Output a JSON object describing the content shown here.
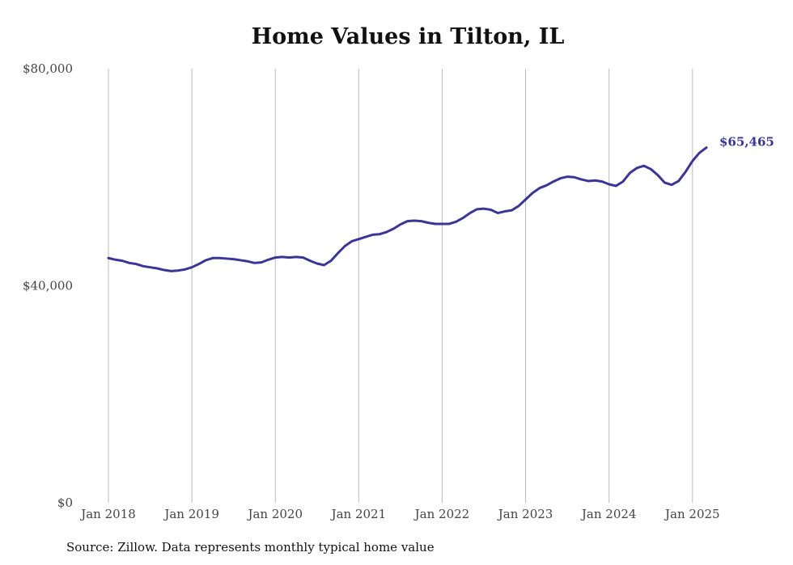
{
  "title": "Home Values in Tilton, IL",
  "source": "Source: Zillow. Data represents monthly typical home value",
  "colors": {
    "line": "#3b3596",
    "grid": "#bbbbbb"
  },
  "chart_data": {
    "type": "line",
    "title": "Home Values in Tilton, IL",
    "xlabel": "",
    "ylabel": "",
    "ylim": [
      0,
      80000
    ],
    "xlim": [
      "2018-01",
      "2025-03"
    ],
    "y_ticks": [
      {
        "value": 0,
        "label": "$0"
      },
      {
        "value": 40000,
        "label": "$40,000"
      },
      {
        "value": 80000,
        "label": "$80,000"
      }
    ],
    "x_ticks": [
      {
        "date": "2018-01",
        "label": "Jan 2018"
      },
      {
        "date": "2019-01",
        "label": "Jan 2019"
      },
      {
        "date": "2020-01",
        "label": "Jan 2020"
      },
      {
        "date": "2021-01",
        "label": "Jan 2021"
      },
      {
        "date": "2022-01",
        "label": "Jan 2022"
      },
      {
        "date": "2023-01",
        "label": "Jan 2023"
      },
      {
        "date": "2024-01",
        "label": "Jan 2024"
      },
      {
        "date": "2025-01",
        "label": "Jan 2025"
      }
    ],
    "grid": "vertical",
    "end_label": "$65,465",
    "series": [
      {
        "points": [
          [
            "2018-01",
            45100
          ],
          [
            "2018-02",
            44800
          ],
          [
            "2018-03",
            44600
          ],
          [
            "2018-04",
            44200
          ],
          [
            "2018-05",
            44000
          ],
          [
            "2018-06",
            43600
          ],
          [
            "2018-07",
            43400
          ],
          [
            "2018-08",
            43200
          ],
          [
            "2018-09",
            42900
          ],
          [
            "2018-10",
            42700
          ],
          [
            "2018-11",
            42800
          ],
          [
            "2018-12",
            43000
          ],
          [
            "2019-01",
            43400
          ],
          [
            "2019-02",
            44000
          ],
          [
            "2019-03",
            44700
          ],
          [
            "2019-04",
            45100
          ],
          [
            "2019-05",
            45100
          ],
          [
            "2019-06",
            45000
          ],
          [
            "2019-07",
            44900
          ],
          [
            "2019-08",
            44700
          ],
          [
            "2019-09",
            44500
          ],
          [
            "2019-10",
            44200
          ],
          [
            "2019-11",
            44300
          ],
          [
            "2019-12",
            44800
          ],
          [
            "2020-01",
            45200
          ],
          [
            "2020-02",
            45300
          ],
          [
            "2020-03",
            45200
          ],
          [
            "2020-04",
            45300
          ],
          [
            "2020-05",
            45200
          ],
          [
            "2020-06",
            44600
          ],
          [
            "2020-07",
            44100
          ],
          [
            "2020-08",
            43800
          ],
          [
            "2020-09",
            44600
          ],
          [
            "2020-10",
            46000
          ],
          [
            "2020-11",
            47300
          ],
          [
            "2020-12",
            48200
          ],
          [
            "2021-01",
            48600
          ],
          [
            "2021-02",
            49000
          ],
          [
            "2021-03",
            49400
          ],
          [
            "2021-04",
            49500
          ],
          [
            "2021-05",
            49900
          ],
          [
            "2021-06",
            50500
          ],
          [
            "2021-07",
            51300
          ],
          [
            "2021-08",
            51900
          ],
          [
            "2021-09",
            52000
          ],
          [
            "2021-10",
            51900
          ],
          [
            "2021-11",
            51600
          ],
          [
            "2021-12",
            51400
          ],
          [
            "2022-01",
            51400
          ],
          [
            "2022-02",
            51400
          ],
          [
            "2022-03",
            51800
          ],
          [
            "2022-04",
            52500
          ],
          [
            "2022-05",
            53400
          ],
          [
            "2022-06",
            54100
          ],
          [
            "2022-07",
            54200
          ],
          [
            "2022-08",
            54000
          ],
          [
            "2022-09",
            53400
          ],
          [
            "2022-10",
            53700
          ],
          [
            "2022-11",
            53900
          ],
          [
            "2022-12",
            54700
          ],
          [
            "2023-01",
            55900
          ],
          [
            "2023-02",
            57100
          ],
          [
            "2023-03",
            58000
          ],
          [
            "2023-04",
            58500
          ],
          [
            "2023-05",
            59200
          ],
          [
            "2023-06",
            59800
          ],
          [
            "2023-07",
            60100
          ],
          [
            "2023-08",
            60000
          ],
          [
            "2023-09",
            59600
          ],
          [
            "2023-10",
            59300
          ],
          [
            "2023-11",
            59400
          ],
          [
            "2023-12",
            59200
          ],
          [
            "2024-01",
            58700
          ],
          [
            "2024-02",
            58400
          ],
          [
            "2024-03",
            59200
          ],
          [
            "2024-04",
            60800
          ],
          [
            "2024-05",
            61700
          ],
          [
            "2024-06",
            62100
          ],
          [
            "2024-07",
            61500
          ],
          [
            "2024-08",
            60400
          ],
          [
            "2024-09",
            59000
          ],
          [
            "2024-10",
            58600
          ],
          [
            "2024-11",
            59300
          ],
          [
            "2024-12",
            61000
          ],
          [
            "2025-01",
            63000
          ],
          [
            "2025-02",
            64500
          ],
          [
            "2025-03",
            65465
          ]
        ]
      }
    ]
  }
}
